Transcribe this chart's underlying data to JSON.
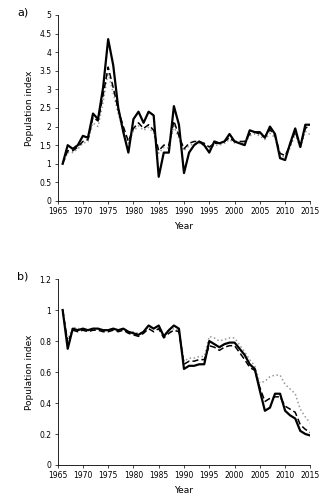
{
  "years_a": [
    1966,
    1967,
    1968,
    1969,
    1970,
    1971,
    1972,
    1973,
    1974,
    1975,
    1976,
    1977,
    1978,
    1979,
    1980,
    1981,
    1982,
    1983,
    1984,
    1985,
    1986,
    1987,
    1988,
    1989,
    1990,
    1991,
    1992,
    1993,
    1994,
    1995,
    1996,
    1997,
    1998,
    1999,
    2000,
    2002,
    2003,
    2004,
    2005,
    2006,
    2007,
    2008,
    2009,
    2010,
    2011,
    2012,
    2013,
    2014,
    2015
  ],
  "obs_a": [
    1.0,
    1.5,
    1.4,
    1.5,
    1.75,
    1.7,
    2.35,
    2.2,
    3.05,
    4.35,
    3.65,
    2.5,
    1.85,
    1.3,
    2.2,
    2.4,
    2.1,
    2.4,
    2.3,
    0.65,
    1.3,
    1.3,
    2.55,
    2.05,
    0.75,
    1.3,
    1.5,
    1.6,
    1.5,
    1.3,
    1.6,
    1.55,
    1.6,
    1.8,
    1.6,
    1.5,
    1.9,
    1.85,
    1.85,
    1.7,
    2.0,
    1.8,
    1.15,
    1.1,
    1.55,
    1.95,
    1.45,
    2.05,
    2.05
  ],
  "mc_a": [
    1.0,
    1.35,
    1.35,
    1.45,
    1.6,
    1.65,
    2.25,
    2.15,
    2.85,
    3.6,
    3.05,
    2.45,
    2.0,
    1.6,
    1.95,
    2.1,
    1.95,
    2.05,
    1.9,
    1.35,
    1.5,
    1.5,
    2.15,
    1.75,
    1.4,
    1.55,
    1.6,
    1.6,
    1.55,
    1.45,
    1.55,
    1.55,
    1.6,
    1.7,
    1.6,
    1.6,
    1.8,
    1.85,
    1.8,
    1.72,
    1.92,
    1.75,
    1.28,
    1.22,
    1.5,
    1.88,
    1.48,
    1.95,
    2.05
  ],
  "md_a": [
    1.0,
    1.3,
    1.3,
    1.4,
    1.55,
    1.6,
    2.1,
    2.0,
    2.65,
    3.45,
    2.9,
    2.35,
    1.9,
    1.55,
    1.88,
    2.02,
    1.9,
    1.98,
    1.82,
    1.28,
    1.44,
    1.42,
    2.02,
    1.68,
    1.35,
    1.48,
    1.55,
    1.55,
    1.5,
    1.4,
    1.5,
    1.5,
    1.55,
    1.65,
    1.56,
    1.55,
    1.75,
    1.8,
    1.75,
    1.65,
    1.82,
    1.7,
    1.22,
    1.17,
    1.44,
    1.8,
    1.42,
    1.87,
    1.78
  ],
  "years_b": [
    1966,
    1967,
    1968,
    1969,
    1970,
    1971,
    1972,
    1973,
    1974,
    1975,
    1976,
    1977,
    1978,
    1979,
    1980,
    1981,
    1982,
    1983,
    1984,
    1985,
    1986,
    1987,
    1988,
    1989,
    1990,
    1991,
    1992,
    1993,
    1994,
    1995,
    1996,
    1997,
    1998,
    1999,
    2000,
    2002,
    2003,
    2004,
    2005,
    2006,
    2007,
    2008,
    2009,
    2010,
    2011,
    2012,
    2013,
    2014,
    2015
  ],
  "obs_b": [
    1.0,
    0.75,
    0.88,
    0.87,
    0.88,
    0.87,
    0.88,
    0.88,
    0.87,
    0.87,
    0.88,
    0.87,
    0.88,
    0.86,
    0.85,
    0.84,
    0.86,
    0.9,
    0.88,
    0.9,
    0.83,
    0.87,
    0.9,
    0.88,
    0.62,
    0.64,
    0.64,
    0.65,
    0.65,
    0.8,
    0.78,
    0.76,
    0.78,
    0.79,
    0.79,
    0.71,
    0.65,
    0.62,
    0.48,
    0.35,
    0.37,
    0.46,
    0.46,
    0.35,
    0.32,
    0.3,
    0.22,
    0.2,
    0.19
  ],
  "mc_b": [
    1.0,
    0.79,
    0.87,
    0.86,
    0.87,
    0.86,
    0.87,
    0.87,
    0.86,
    0.86,
    0.87,
    0.86,
    0.87,
    0.85,
    0.84,
    0.83,
    0.85,
    0.88,
    0.86,
    0.88,
    0.82,
    0.85,
    0.87,
    0.86,
    0.65,
    0.67,
    0.67,
    0.68,
    0.68,
    0.77,
    0.76,
    0.74,
    0.76,
    0.77,
    0.77,
    0.68,
    0.63,
    0.61,
    0.5,
    0.41,
    0.43,
    0.44,
    0.44,
    0.38,
    0.36,
    0.34,
    0.26,
    0.23,
    0.21
  ],
  "md_b": [
    1.0,
    0.81,
    0.89,
    0.88,
    0.88,
    0.87,
    0.88,
    0.88,
    0.87,
    0.87,
    0.88,
    0.87,
    0.88,
    0.86,
    0.86,
    0.85,
    0.86,
    0.9,
    0.88,
    0.9,
    0.84,
    0.86,
    0.88,
    0.87,
    0.67,
    0.69,
    0.69,
    0.7,
    0.7,
    0.83,
    0.82,
    0.8,
    0.81,
    0.82,
    0.82,
    0.73,
    0.68,
    0.64,
    0.53,
    0.54,
    0.57,
    0.58,
    0.58,
    0.52,
    0.49,
    0.46,
    0.36,
    0.31,
    0.27
  ],
  "xlabel": "Year",
  "ylabel": "Population index",
  "label_a": "a)",
  "label_b": "b)",
  "ylim_a": [
    0,
    5
  ],
  "ylim_b": [
    0,
    1.2
  ],
  "yticks_a": [
    0,
    0.5,
    1.0,
    1.5,
    2.0,
    2.5,
    3.0,
    3.5,
    4.0,
    4.5,
    5.0
  ],
  "yticks_b": [
    0,
    0.2,
    0.4,
    0.6,
    0.8,
    1.0,
    1.2
  ],
  "xlim": [
    1965,
    2015
  ],
  "xticks": [
    1965,
    1970,
    1975,
    1980,
    1985,
    1990,
    1995,
    2000,
    2005,
    2010,
    2015
  ],
  "obs_color": "#000000",
  "mc_color": "#000000",
  "md_color": "#999999",
  "obs_lw": 1.6,
  "mc_lw": 1.1,
  "md_lw": 1.1
}
